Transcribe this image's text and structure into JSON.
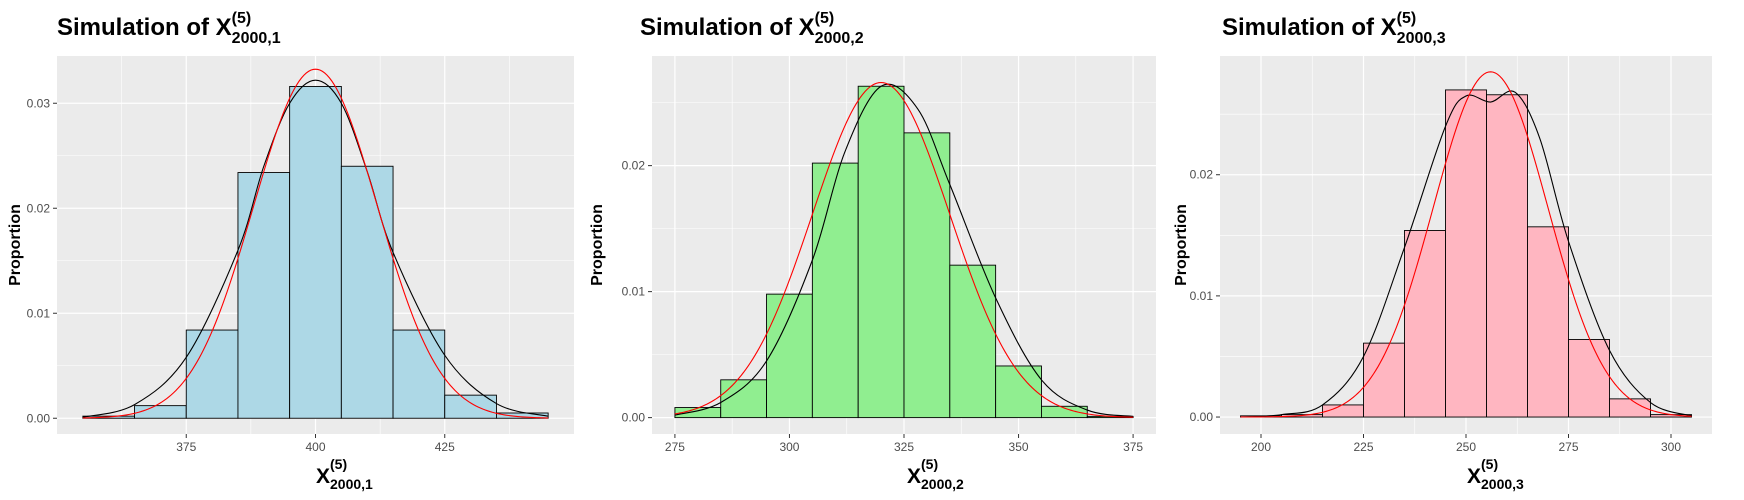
{
  "chart_data": [
    {
      "type": "bar",
      "title": {
        "main": "Simulation of X",
        "sup": "(5)",
        "sub": "2000,1"
      },
      "ylabel": "Proportion",
      "xlabel": {
        "main": "X",
        "sup": "(5)",
        "sub": "2000,1"
      },
      "xlim": [
        350,
        450
      ],
      "ylim": [
        -0.0015,
        0.0345
      ],
      "xticks": [
        375,
        400,
        425
      ],
      "xtick_labels": [
        "375",
        "400",
        "425"
      ],
      "yticks": [
        0,
        0.01,
        0.02,
        0.03
      ],
      "ytick_labels": [
        "0.00",
        "0.01",
        "0.02",
        "0.03"
      ],
      "bin_edges": [
        355,
        365,
        375,
        385,
        395,
        405,
        415,
        425,
        435,
        445
      ],
      "values": [
        0.0002,
        0.0012,
        0.0084,
        0.0234,
        0.0316,
        0.024,
        0.0084,
        0.0022,
        0.0005
      ],
      "fill": "#add8e6",
      "normal_curve": {
        "mean": 400,
        "sd": 12,
        "color": "#ff0000"
      },
      "density_curve": {
        "x": [
          355,
          365,
          375,
          385,
          390,
          395,
          400,
          405,
          410,
          415,
          425,
          435,
          445
        ],
        "y": [
          0.0001,
          0.0013,
          0.0058,
          0.016,
          0.024,
          0.03,
          0.0322,
          0.03,
          0.0235,
          0.0158,
          0.006,
          0.0014,
          0.0002
        ],
        "color": "#000000"
      },
      "grid": true
    },
    {
      "type": "bar",
      "title": {
        "main": "Simulation of X",
        "sup": "(5)",
        "sub": "2000,2"
      },
      "ylabel": "Proportion",
      "xlabel": {
        "main": "X",
        "sup": "(5)",
        "sub": "2000,2"
      },
      "xlim": [
        270,
        380
      ],
      "ylim": [
        -0.0013,
        0.0287
      ],
      "xticks": [
        275,
        300,
        325,
        350,
        375
      ],
      "xtick_labels": [
        "275",
        "300",
        "325",
        "350",
        "375"
      ],
      "yticks": [
        0,
        0.01,
        0.02
      ],
      "ytick_labels": [
        "0.00",
        "0.01",
        "0.02"
      ],
      "bin_edges": [
        275,
        285,
        295,
        305,
        315,
        325,
        335,
        345,
        355,
        365,
        375
      ],
      "values": [
        0.0008,
        0.003,
        0.0098,
        0.0202,
        0.0263,
        0.0226,
        0.0121,
        0.0041,
        0.0009,
        0.0001
      ],
      "fill": "#90ee90",
      "normal_curve": {
        "mean": 320,
        "sd": 15,
        "color": "#ff0000"
      },
      "density_curve": {
        "x": [
          275,
          285,
          295,
          305,
          312,
          320,
          328,
          335,
          345,
          355,
          365,
          375
        ],
        "y": [
          0.0002,
          0.0012,
          0.0045,
          0.0125,
          0.021,
          0.0263,
          0.0245,
          0.0185,
          0.0095,
          0.003,
          0.0006,
          0.0001
        ],
        "color": "#000000"
      },
      "grid": true
    },
    {
      "type": "bar",
      "title": {
        "main": "Simulation of X",
        "sup": "(5)",
        "sub": "2000,3"
      },
      "ylabel": "Proportion",
      "xlabel": {
        "main": "X",
        "sup": "(5)",
        "sub": "2000,3"
      },
      "xlim": [
        190,
        310
      ],
      "ylim": [
        -0.0014,
        0.0298
      ],
      "xticks": [
        200,
        225,
        250,
        275,
        300
      ],
      "xtick_labels": [
        "200",
        "225",
        "250",
        "275",
        "300"
      ],
      "yticks": [
        0,
        0.01,
        0.02
      ],
      "ytick_labels": [
        "0.00",
        "0.01",
        "0.02"
      ],
      "bin_edges": [
        195,
        205,
        215,
        225,
        235,
        245,
        255,
        265,
        275,
        285,
        295,
        305
      ],
      "values": [
        0.0001,
        0.0002,
        0.001,
        0.0061,
        0.0154,
        0.027,
        0.0266,
        0.0157,
        0.0064,
        0.0015,
        0.0002
      ],
      "fill": "#ffb6c1",
      "normal_curve": {
        "mean": 256,
        "sd": 14,
        "color": "#ff0000"
      },
      "density_curve": {
        "x": [
          195,
          205,
          215,
          225,
          235,
          245,
          250,
          256,
          262,
          268,
          275,
          285,
          295,
          305
        ],
        "y": [
          0.0,
          0.0002,
          0.001,
          0.005,
          0.014,
          0.024,
          0.0265,
          0.026,
          0.0268,
          0.023,
          0.0145,
          0.0055,
          0.0012,
          0.0001
        ],
        "color": "#000000"
      },
      "grid": true
    }
  ]
}
